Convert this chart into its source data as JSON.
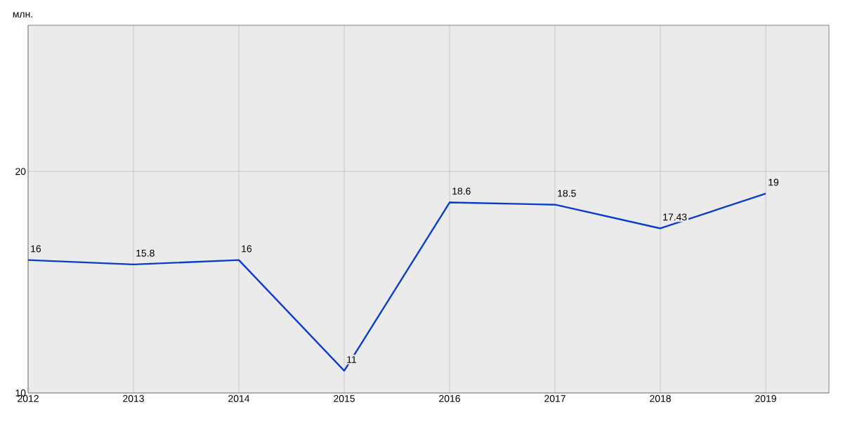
{
  "chart_data": {
    "type": "line",
    "ylabel": "млн.",
    "x": [
      2012,
      2013,
      2014,
      2015,
      2016,
      2017,
      2018,
      2019
    ],
    "series": [
      {
        "color": "#0a3ccc",
        "values": [
          16,
          15.8,
          16,
          11,
          18.6,
          18.5,
          17.43,
          19
        ]
      }
    ],
    "xlim": [
      2012,
      2019.6
    ],
    "xticks": [
      2012,
      2013,
      2014,
      2015,
      2016,
      2017,
      2018,
      2019
    ],
    "ylim": [
      10,
      26.6
    ],
    "yticks": [
      10,
      20
    ],
    "grid": true,
    "data_labels": true,
    "marker": "none",
    "line_style": "solid"
  }
}
